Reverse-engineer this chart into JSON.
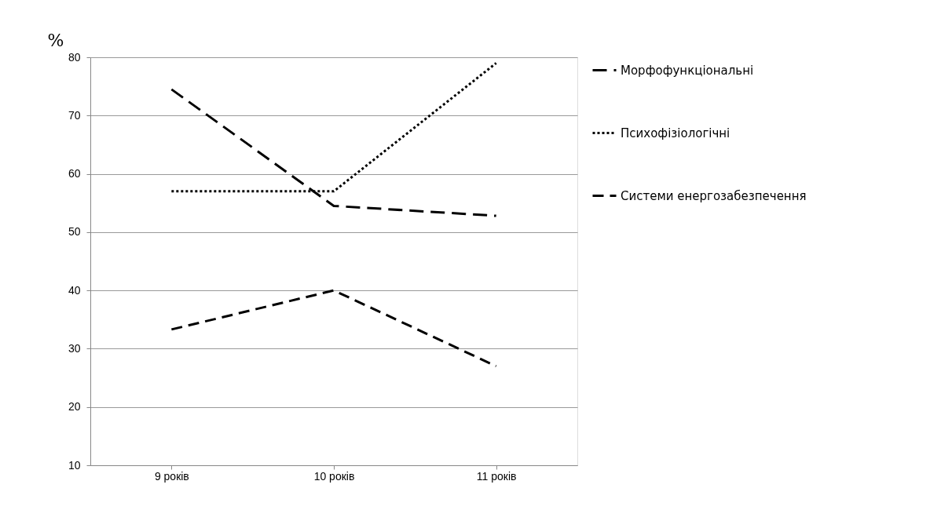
{
  "chart_data": {
    "type": "line",
    "ylabel": "%",
    "categories": [
      "9 років",
      "10 років",
      "11 років"
    ],
    "series": [
      {
        "name": "Морфофункціональні",
        "color": "#000000",
        "line_style": "dashed",
        "values": [
          74.5,
          54.5,
          52.8
        ]
      },
      {
        "name": "Психофізіологічні",
        "color": "#000000",
        "line_style": "dotted",
        "values": [
          57,
          57,
          79
        ]
      },
      {
        "name": "Системи енергозабезпечення",
        "color": "#000000",
        "line_style": "dashed",
        "values": [
          33.3,
          40,
          27
        ]
      }
    ],
    "ylim": [
      10,
      80
    ],
    "yticks": [
      10,
      20,
      30,
      40,
      50,
      60,
      70,
      80
    ],
    "grid": "y",
    "legend": "right",
    "marker": "none"
  }
}
